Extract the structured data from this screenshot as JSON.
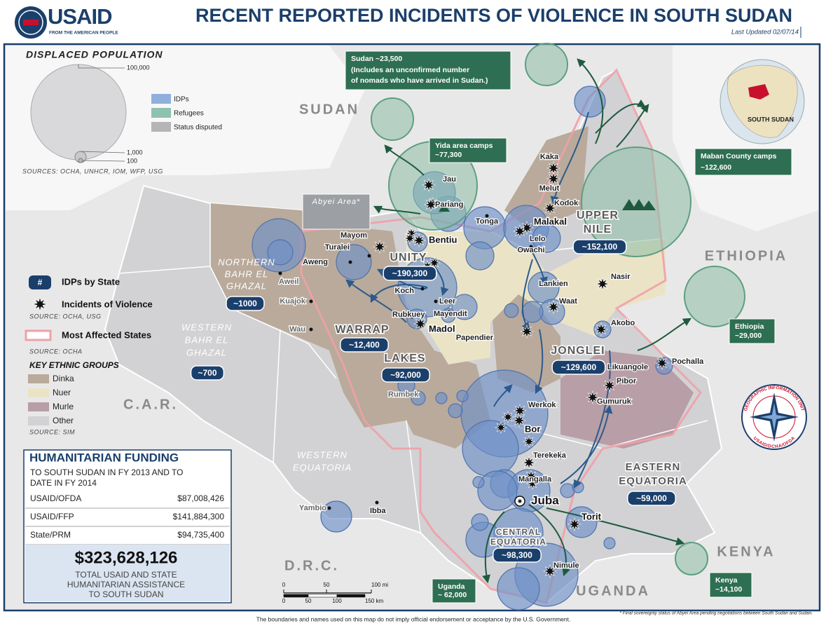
{
  "header": {
    "logo": "USAID",
    "logo_tagline": "FROM THE AMERICAN PEOPLE",
    "title": "RECENT REPORTED INCIDENTS OF VIOLENCE IN SOUTH SUDAN",
    "updated": "Last Updated 02/07/14"
  },
  "legend": {
    "displaced_title": "DISPLACED POPULATION",
    "scale": [
      "100,000",
      "1,000",
      "100"
    ],
    "types": [
      "IDPs",
      "Refugees",
      "Status disputed"
    ],
    "sources": "SOURCES: OCHA, UNHCR, IOM, WFP, USG",
    "idp_symbol": "#",
    "idp_label": "IDPs by State",
    "incident_label": "Incidents of Violence",
    "incident_source": "SOURCE: OCHA, USG",
    "affected_label": "Most Affected States",
    "affected_source": "SOURCE: OCHA",
    "ethnic_title": "KEY ETHNIC GROUPS",
    "ethnic_groups": [
      "Dinka",
      "Nuer",
      "Murle",
      "Other"
    ],
    "ethnic_source": "SOURCE: SIM"
  },
  "funding": {
    "title": "HUMANITARIAN FUNDING",
    "subtitle": [
      "TO SOUTH SUDAN IN FY 2013 AND TO",
      "DATE IN FY 2014"
    ],
    "rows": [
      [
        "USAID/OFDA",
        "$87,008,426"
      ],
      [
        "USAID/FFP",
        "$141,884,300"
      ],
      [
        "State/PRM",
        "$94,735,400"
      ]
    ],
    "total": "$323,628,126",
    "total_caption": [
      "TOTAL USAID AND STATE",
      "HUMANITARIAN ASSISTANCE",
      "TO SOUTH SUDAN"
    ]
  },
  "map": {
    "countries": [
      "SUDAN",
      "C.A.R.",
      "D.R.C.",
      "UGANDA",
      "KENYA",
      "ETHIOPIA"
    ],
    "inset_label": "SOUTH SUDAN",
    "abyei": "Abyei Area*",
    "states": [
      {
        "name": [
          "NORTHERN",
          "BAHR EL",
          "GHAZAL"
        ],
        "idps": "~1000"
      },
      {
        "name": [
          "WESTERN",
          "BAHR EL",
          "GHAZAL"
        ],
        "idps": "~700"
      },
      {
        "name": [
          "WARRAP"
        ],
        "idps": "~12,400"
      },
      {
        "name": [
          "UNITY"
        ],
        "idps": "~190,300"
      },
      {
        "name": [
          "UPPER",
          "NILE"
        ],
        "idps": "~152,100"
      },
      {
        "name": [
          "JONGLEI"
        ],
        "idps": "~129,600"
      },
      {
        "name": [
          "LAKES"
        ],
        "idps": "~92,000"
      },
      {
        "name": [
          "WESTERN",
          "EQUATORIA"
        ]
      },
      {
        "name": [
          "CENTRAL",
          "EQUATORIA"
        ],
        "idps": "~98,300"
      },
      {
        "name": [
          "EASTERN",
          "EQUATORIA"
        ],
        "idps": "~59,000"
      }
    ],
    "refugee_callouts": [
      {
        "label": "Sudan ~23,500",
        "note": [
          "(Includes an unconfirmed number",
          "of nomads who have arrived in Sudan.)"
        ]
      },
      {
        "label": "Yida area camps",
        "value": "~77,300"
      },
      {
        "label": "Maban County camps",
        "value": "~122,600"
      },
      {
        "label": "Ethiopia",
        "value": "~29,000"
      },
      {
        "label": "Kenya",
        "value": "~14,100"
      },
      {
        "label": "Uganda",
        "value": "~ 62,000"
      }
    ],
    "towns": [
      "Jau",
      "Pariang",
      "Mayom",
      "Turalei",
      "Aweng",
      "Bentiu",
      "Tonga",
      "Malakal",
      "Lelo",
      "Owachi",
      "Kaka",
      "Melut",
      "Kodok",
      "Nasir",
      "Lankien",
      "Waat",
      "Akobo",
      "Pochalla",
      "Likuangole",
      "Pibor",
      "Gumuruk",
      "Koch",
      "Leer",
      "Mayendit",
      "Rubkuey",
      "Madol",
      "Papendier",
      "Aweil",
      "Kuajok",
      "Wau",
      "Rumbek",
      "Werkok",
      "Bor",
      "Terekeka",
      "Mangalla",
      "Juba",
      "Torit",
      "Nimule",
      "Yambio",
      "Ibba"
    ]
  },
  "scale_bar": {
    "mi": [
      "0",
      "50",
      "100 mi"
    ],
    "km": [
      "0",
      "50",
      "100",
      "150 km"
    ]
  },
  "emblem": [
    "GEOGRAPHIC INFORMATION UNIT",
    "USAID/DCHA/OFDA"
  ],
  "footer": {
    "disclaimer": "The boundaries and names used on this map do not imply official endorsement or acceptance by the U.S. Government.",
    "footnote": "* Final sovereignty status of Abyei Area pending negotiations between South Sudan and Sudan."
  }
}
